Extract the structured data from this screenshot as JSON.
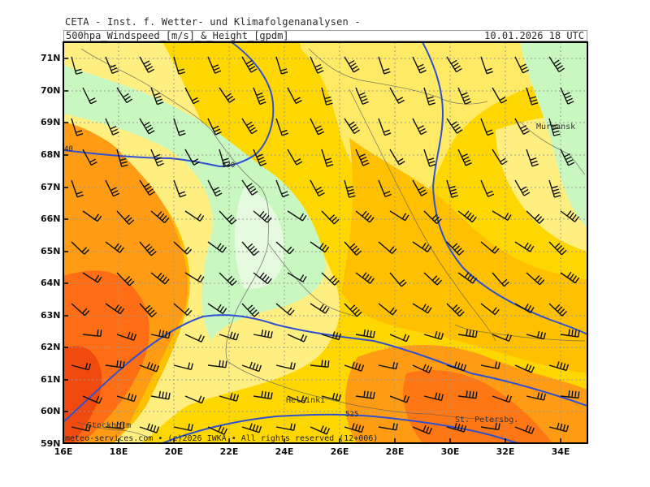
{
  "title": "CETA - Inst. f. Wetter- und Klimafolgenanalysen -",
  "header": {
    "product": "500hpa_Windspeed_[m/s]_&_Height_[gpdm]",
    "valid_time": "10.01.2026 18 UTC"
  },
  "map": {
    "lat_labels": [
      "71N",
      "70N",
      "69N",
      "68N",
      "67N",
      "66N",
      "65N",
      "64N",
      "63N",
      "62N",
      "61N",
      "60N",
      "59N"
    ],
    "lon_labels": [
      "16E",
      "18E",
      "20E",
      "22E",
      "24E",
      "26E",
      "28E",
      "30E",
      "32E",
      "34E"
    ],
    "contour_labels": {
      "c530": "530",
      "c525": "525",
      "c540_fragment": "40"
    },
    "cities": {
      "murmansk": "Murmansk",
      "helsinki": "Helsinki",
      "stockholm": "Stockholm",
      "st_petersburg": "St. Petersbg."
    },
    "colors": {
      "very_light_green": "#e6fae0",
      "light_green": "#c8f7c0",
      "light_yellow": "#ffef80",
      "yellow": "#ffd700",
      "gold": "#ffc000",
      "orange": "#ff9c14",
      "dark_orange": "#ff6e14",
      "red_orange": "#f04a0f",
      "contour_line": "#3050d0",
      "grid": "#9a9a9a"
    }
  },
  "footer": {
    "copyright": "meteo-services.com • (c)2026 IWKA • All rights reserved (12+006)"
  }
}
